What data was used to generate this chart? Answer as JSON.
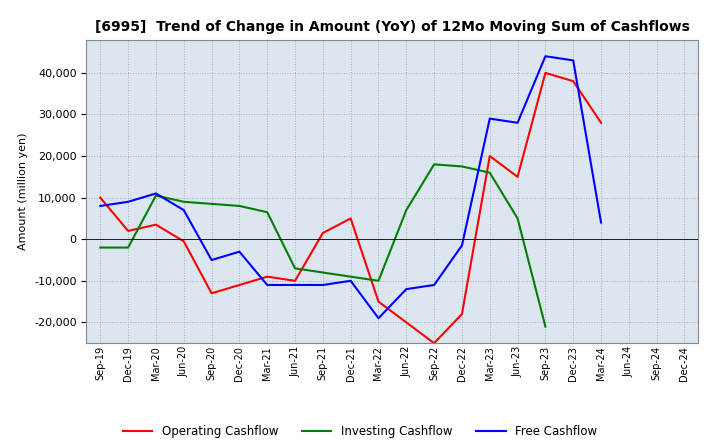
{
  "title": "[6995]  Trend of Change in Amount (YoY) of 12Mo Moving Sum of Cashflows",
  "ylabel": "Amount (million yen)",
  "x_labels": [
    "Sep-19",
    "Dec-19",
    "Mar-20",
    "Jun-20",
    "Sep-20",
    "Dec-20",
    "Mar-21",
    "Jun-21",
    "Sep-21",
    "Dec-21",
    "Mar-22",
    "Jun-22",
    "Sep-22",
    "Dec-22",
    "Mar-23",
    "Jun-23",
    "Sep-23",
    "Dec-23",
    "Mar-24",
    "Jun-24",
    "Sep-24",
    "Dec-24"
  ],
  "operating": [
    10000,
    2000,
    3500,
    -500,
    -13000,
    -11000,
    -9000,
    -10000,
    1500,
    5000,
    -15000,
    -20000,
    -25000,
    -18000,
    20000,
    15000,
    40000,
    38000,
    28000,
    null,
    null,
    null
  ],
  "investing": [
    -2000,
    -2000,
    10500,
    9000,
    8500,
    8000,
    6500,
    -7000,
    -8000,
    -9000,
    -10000,
    7000,
    18000,
    17500,
    16000,
    5000,
    -21000,
    null,
    null,
    null,
    null,
    null
  ],
  "free": [
    8000,
    9000,
    11000,
    7000,
    -5000,
    -3000,
    -11000,
    -11000,
    -11000,
    -10000,
    -19000,
    -12000,
    -11000,
    -1500,
    29000,
    28000,
    44000,
    43000,
    4000,
    null,
    null,
    null
  ],
  "operating_color": "#ff0000",
  "investing_color": "#008000",
  "free_color": "#0000ff",
  "ylim_min": -25000,
  "ylim_max": 48000,
  "yticks": [
    -20000,
    -10000,
    0,
    10000,
    20000,
    30000,
    40000
  ],
  "grid_color": "#aaaaaa",
  "background_color": "#dce6f1",
  "grid_linestyle": ":"
}
